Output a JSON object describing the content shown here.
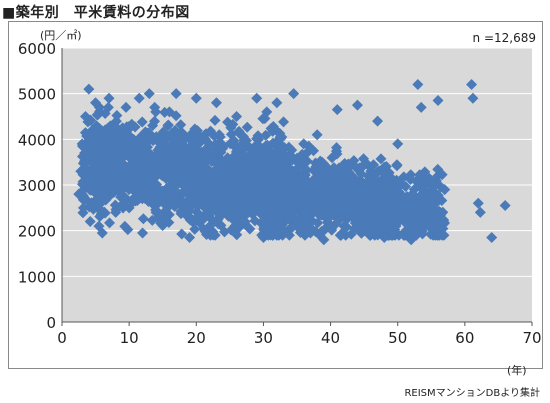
{
  "chart_data": {
    "type": "scatter",
    "title": "■築年別　平米賃料の分布図",
    "ylabel": "(円／㎡)",
    "xlabel": "(年)",
    "annotation": "n =12,689",
    "source": "REISMマンションDBより集計",
    "xlim": [
      0,
      70
    ],
    "ylim": [
      0,
      6000
    ],
    "xticks": [
      0,
      10,
      20,
      30,
      40,
      50,
      60,
      70
    ],
    "yticks": [
      0,
      1000,
      2000,
      3000,
      4000,
      5000,
      6000
    ],
    "grid": "horizontal",
    "marker_color": "#4a7ab8",
    "plot_bg": "#d9d9d9",
    "series": [
      {
        "points": [
          [
            2.5,
            2800
          ],
          [
            2.8,
            3300
          ],
          [
            3.0,
            3900
          ],
          [
            3.2,
            2500
          ],
          [
            3.5,
            4500
          ],
          [
            4.0,
            5100
          ],
          [
            4.2,
            2200
          ],
          [
            4.5,
            4200
          ],
          [
            5.0,
            4800
          ],
          [
            5.5,
            2100
          ],
          [
            5.8,
            4000
          ],
          [
            6.0,
            1950
          ],
          [
            6.5,
            3100
          ],
          [
            7.0,
            4900
          ],
          [
            7.5,
            3500
          ],
          [
            8.0,
            2400
          ],
          [
            9.0,
            4100
          ],
          [
            10.0,
            2500
          ],
          [
            11.0,
            3700
          ],
          [
            11.5,
            4900
          ],
          [
            12.0,
            1950
          ],
          [
            13.0,
            5000
          ],
          [
            14.0,
            2400
          ],
          [
            15.0,
            3200
          ],
          [
            16.0,
            4600
          ],
          [
            17.0,
            5000
          ],
          [
            18.0,
            2600
          ],
          [
            19.0,
            1850
          ],
          [
            20.0,
            4900
          ],
          [
            20.5,
            2300
          ],
          [
            22.0,
            2100
          ],
          [
            23.0,
            4800
          ],
          [
            24.0,
            3300
          ],
          [
            25.0,
            2700
          ],
          [
            26.0,
            4500
          ],
          [
            27.0,
            2200
          ],
          [
            28.0,
            3400
          ],
          [
            29.0,
            4900
          ],
          [
            30.0,
            1850
          ],
          [
            30.5,
            4600
          ],
          [
            31.0,
            2300
          ],
          [
            32.0,
            4800
          ],
          [
            33.0,
            2000
          ],
          [
            34.0,
            3600
          ],
          [
            34.5,
            5000
          ],
          [
            35.0,
            2200
          ],
          [
            36.0,
            3900
          ],
          [
            37.0,
            1950
          ],
          [
            38.0,
            4100
          ],
          [
            38.5,
            2900
          ],
          [
            39.0,
            1800
          ],
          [
            40.0,
            2500
          ],
          [
            41.0,
            4650
          ],
          [
            42.0,
            2100
          ],
          [
            43.0,
            3100
          ],
          [
            44.0,
            4750
          ],
          [
            45.0,
            2000
          ],
          [
            46.0,
            3300
          ],
          [
            47.0,
            4400
          ],
          [
            48.0,
            1850
          ],
          [
            49.0,
            2700
          ],
          [
            50.0,
            3900
          ],
          [
            51.0,
            2300
          ],
          [
            52.0,
            1800
          ],
          [
            53.0,
            5200
          ],
          [
            53.5,
            4700
          ],
          [
            54.0,
            2400
          ],
          [
            55.0,
            3100
          ],
          [
            56.0,
            4850
          ],
          [
            57.0,
            2900
          ],
          [
            61.0,
            5200
          ],
          [
            61.2,
            4900
          ],
          [
            62.0,
            2600
          ],
          [
            62.3,
            2400
          ],
          [
            64.0,
            1850
          ],
          [
            66.0,
            2550
          ]
        ]
      }
    ]
  }
}
